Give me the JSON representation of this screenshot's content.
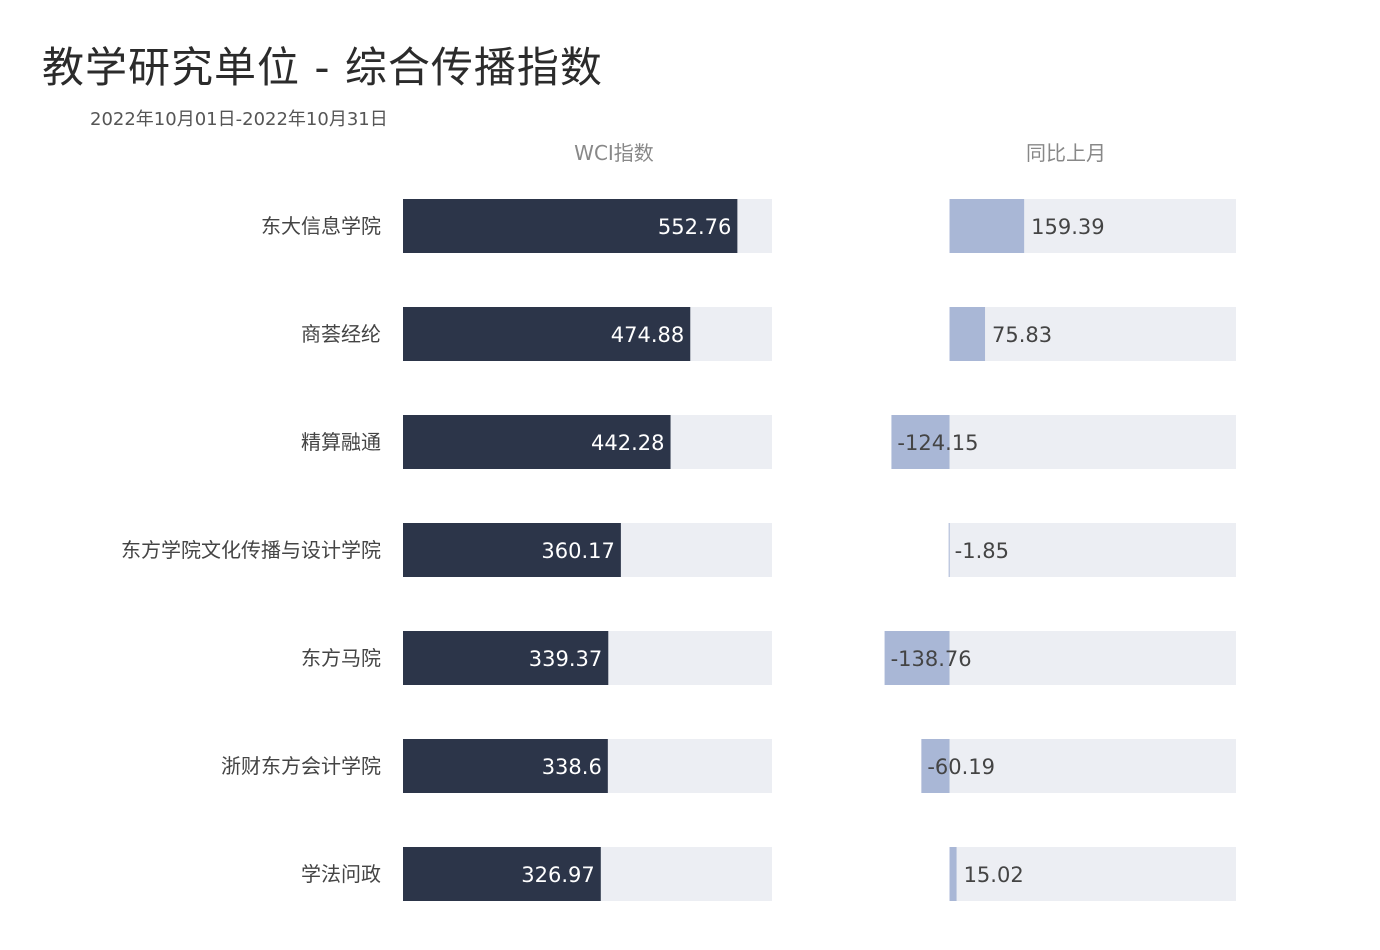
{
  "title": "教学研究单位 - 综合传播指数",
  "subtitle": "2022年10月01日-2022年10月31日",
  "colors": {
    "wci_bar": "#2c3549",
    "wci_track": "#eceef3",
    "change_bar": "#a9b7d6",
    "change_track": "#eceef3",
    "label_inside": "#ffffff",
    "label_outside": "#444444",
    "column_header": "#888888",
    "category_text": "#444444"
  },
  "chart_data": [
    {
      "type": "bar",
      "orientation": "horizontal",
      "title": "WCI指数",
      "categories": [
        "东大信息学院",
        "商荟经纶",
        "精算融通",
        "东方学院文化传播与设计学院",
        "东方马院",
        "浙财东方会计学院",
        "学法问政"
      ],
      "values": [
        552.76,
        474.88,
        442.28,
        360.17,
        339.37,
        338.6,
        326.97
      ],
      "data_labels": [
        "552.76",
        "474.88",
        "442.28",
        "360.17",
        "339.37",
        "338.6",
        "326.97"
      ],
      "xlim": [
        0,
        610
      ],
      "grid": false,
      "legend": "none"
    },
    {
      "type": "bar",
      "orientation": "horizontal",
      "title": "同比上月",
      "categories": [
        "东大信息学院",
        "商荟经纶",
        "精算融通",
        "东方学院文化传播与设计学院",
        "东方马院",
        "浙财东方会计学院",
        "学法问政"
      ],
      "values": [
        159.39,
        75.83,
        -124.15,
        -1.85,
        -138.76,
        -60.19,
        15.02
      ],
      "data_labels": [
        "159.39",
        "75.83",
        "-124.15",
        "-1.85",
        "-138.76",
        "-60.19",
        "15.02"
      ],
      "xlim": [
        -140,
        612
      ],
      "grid": false,
      "legend": "none"
    }
  ]
}
